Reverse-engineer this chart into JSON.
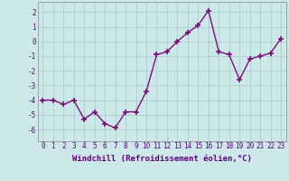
{
  "x": [
    0,
    1,
    2,
    3,
    4,
    5,
    6,
    7,
    8,
    9,
    10,
    11,
    12,
    13,
    14,
    15,
    16,
    17,
    18,
    19,
    20,
    21,
    22,
    23
  ],
  "y": [
    -4.0,
    -4.0,
    -4.3,
    -4.0,
    -5.3,
    -4.8,
    -5.6,
    -5.9,
    -4.8,
    -4.8,
    -3.4,
    -0.9,
    -0.7,
    0.0,
    0.6,
    1.1,
    2.1,
    -0.7,
    -0.9,
    -2.6,
    -1.2,
    -1.0,
    -0.8,
    0.2
  ],
  "line_color": "#7B0E7B",
  "marker": "+",
  "marker_size": 4,
  "marker_linewidth": 1.2,
  "line_width": 1.0,
  "bg_color": "#cde8e8",
  "grid_color": "#a8c8c8",
  "xlabel": "Windchill (Refroidissement éolien,°C)",
  "xlabel_fontsize": 6.5,
  "yticks": [
    -6,
    -5,
    -4,
    -3,
    -2,
    -1,
    0,
    1,
    2
  ],
  "xlim": [
    -0.5,
    23.5
  ],
  "ylim": [
    -6.8,
    2.7
  ],
  "tick_fontsize": 5.5,
  "label_color": "#5B007B"
}
